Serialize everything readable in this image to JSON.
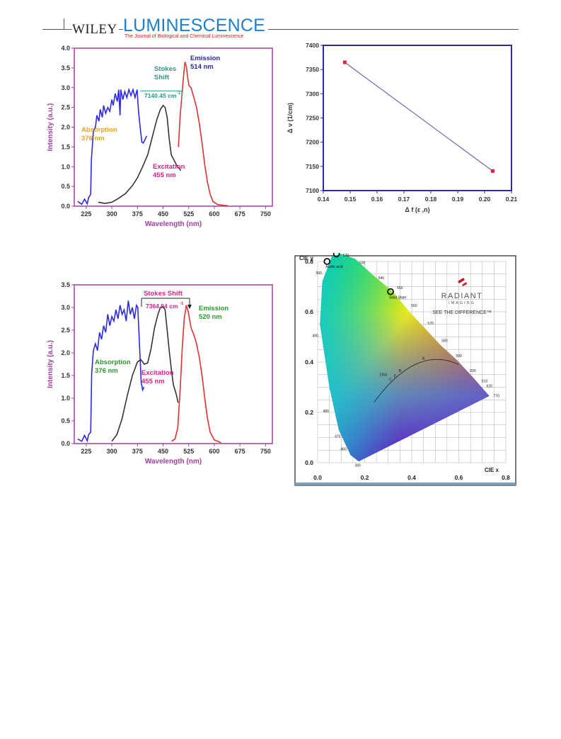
{
  "header": {
    "publisher": "WILEY",
    "journal": "LUMINESCENCE",
    "subtitle": "The Journal of Biological and Chemical Luminescence"
  },
  "chart_data": [
    {
      "id": "spectrum-top",
      "type": "line",
      "xlabel": "Wavelength (nm)",
      "ylabel": "Intensity (a.u.)",
      "xlim": [
        190,
        770
      ],
      "ylim": [
        0,
        4.0
      ],
      "xticks": [
        225,
        300,
        375,
        450,
        525,
        600,
        675,
        750
      ],
      "yticks": [
        "0.0",
        "0.5",
        "1.0",
        "1.5",
        "2.0",
        "2.5",
        "3.0",
        "3.5",
        "4.0"
      ],
      "annotations": {
        "absorption": "Absorption\n376 nm",
        "excitation": "Excitation\n455 nm",
        "emission": "Emission\n514 nm",
        "stokes": "Stokes\nShift",
        "stokes_value": "7140.45 cm",
        "stokes_sup": "-1"
      },
      "series": [
        {
          "color": "#2b2bd9",
          "points": [
            [
              200,
              0.12
            ],
            [
              212,
              0.05
            ],
            [
              220,
              0.18
            ],
            [
              228,
              0.06
            ],
            [
              232,
              0.22
            ],
            [
              238,
              0.3
            ],
            [
              240,
              1.15
            ],
            [
              246,
              1.9
            ],
            [
              252,
              2.0
            ],
            [
              256,
              2.3
            ],
            [
              262,
              2.15
            ],
            [
              266,
              2.45
            ],
            [
              272,
              2.25
            ],
            [
              276,
              2.55
            ],
            [
              282,
              2.35
            ],
            [
              288,
              2.5
            ],
            [
              294,
              2.4
            ],
            [
              300,
              2.7
            ],
            [
              304,
              2.55
            ],
            [
              310,
              2.85
            ],
            [
              316,
              2.65
            ],
            [
              320,
              2.95
            ],
            [
              324,
              2.3
            ],
            [
              326,
              2.95
            ],
            [
              332,
              2.7
            ],
            [
              338,
              2.9
            ],
            [
              344,
              2.75
            ],
            [
              350,
              2.95
            ],
            [
              356,
              2.8
            ],
            [
              362,
              2.95
            ],
            [
              368,
              2.75
            ],
            [
              374,
              2.95
            ],
            [
              378,
              2.4
            ],
            [
              384,
              1.9
            ],
            [
              388,
              1.62
            ],
            [
              392,
              1.6
            ],
            [
              398,
              1.7
            ],
            [
              402,
              1.78
            ]
          ]
        },
        {
          "color": "#333333",
          "points": [
            [
              260,
              0.1
            ],
            [
              280,
              0.07
            ],
            [
              300,
              0.1
            ],
            [
              320,
              0.2
            ],
            [
              340,
              0.32
            ],
            [
              360,
              0.52
            ],
            [
              375,
              0.72
            ],
            [
              390,
              1.0
            ],
            [
              405,
              1.3
            ],
            [
              420,
              1.8
            ],
            [
              432,
              2.2
            ],
            [
              442,
              2.45
            ],
            [
              450,
              2.55
            ],
            [
              456,
              2.5
            ],
            [
              462,
              2.25
            ],
            [
              468,
              1.7
            ],
            [
              474,
              1.3
            ],
            [
              480,
              1.2
            ],
            [
              486,
              1.1
            ],
            [
              492,
              1.0
            ],
            [
              498,
              0.95
            ],
            [
              502,
              0.9
            ]
          ]
        },
        {
          "color": "#e03030",
          "points": [
            [
              495,
              1.5
            ],
            [
              500,
              2.3
            ],
            [
              505,
              2.8
            ],
            [
              510,
              3.3
            ],
            [
              514,
              3.65
            ],
            [
              518,
              3.55
            ],
            [
              522,
              3.25
            ],
            [
              526,
              3.05
            ],
            [
              532,
              3.0
            ],
            [
              540,
              2.75
            ],
            [
              548,
              2.5
            ],
            [
              556,
              2.1
            ],
            [
              564,
              1.6
            ],
            [
              572,
              1.05
            ],
            [
              580,
              0.6
            ],
            [
              588,
              0.3
            ],
            [
              596,
              0.12
            ],
            [
              610,
              0.04
            ],
            [
              640,
              0.01
            ]
          ]
        }
      ]
    },
    {
      "id": "lippert-plot",
      "type": "line",
      "xlabel": "Δ f (ε ,n)",
      "ylabel": "Δ ν (1/cm)",
      "xlim": [
        0.14,
        0.21
      ],
      "ylim": [
        7100,
        7400
      ],
      "xticks": [
        "0.14",
        "0.15",
        "0.16",
        "0.17",
        "0.18",
        "0.19",
        "0.20",
        "0.21"
      ],
      "yticks": [
        "7100",
        "7150",
        "7200",
        "7250",
        "7300",
        "7350",
        "7400"
      ],
      "x": [
        0.148,
        0.203
      ],
      "y": [
        7364.94,
        7140.45
      ]
    },
    {
      "id": "spectrum-bottom",
      "type": "line",
      "xlabel": "Wavelength (nm)",
      "ylabel": "Intensity (a.u.)",
      "xlim": [
        190,
        770
      ],
      "ylim": [
        0,
        3.5
      ],
      "xticks": [
        225,
        300,
        375,
        450,
        525,
        600,
        675,
        750
      ],
      "yticks": [
        "0.0",
        "0.5",
        "1.0",
        "1.5",
        "2.0",
        "2.5",
        "3.0",
        "3.5"
      ],
      "annotations": {
        "absorption": "Absorption\n376 nm",
        "excitation": "Excitation\n455 nm",
        "emission": "Emission\n520 nm",
        "stokes": "Stokes Shift",
        "stokes_value": "7364.94 cm",
        "stokes_sup": "-1"
      },
      "series": [
        {
          "color": "#2b2bd9",
          "points": [
            [
              200,
              0.1
            ],
            [
              212,
              0.05
            ],
            [
              220,
              0.18
            ],
            [
              228,
              0.06
            ],
            [
              232,
              0.2
            ],
            [
              238,
              0.25
            ],
            [
              241,
              1.55
            ],
            [
              246,
              2.05
            ],
            [
              252,
              2.2
            ],
            [
              258,
              2.05
            ],
            [
              264,
              2.45
            ],
            [
              270,
              2.3
            ],
            [
              276,
              2.6
            ],
            [
              282,
              2.45
            ],
            [
              288,
              2.85
            ],
            [
              294,
              2.6
            ],
            [
              300,
              2.8
            ],
            [
              306,
              2.7
            ],
            [
              312,
              2.95
            ],
            [
              318,
              2.75
            ],
            [
              324,
              3.05
            ],
            [
              330,
              2.85
            ],
            [
              336,
              2.95
            ],
            [
              342,
              2.7
            ],
            [
              348,
              3.15
            ],
            [
              354,
              2.85
            ],
            [
              360,
              3.0
            ],
            [
              366,
              2.75
            ],
            [
              372,
              3.05
            ],
            [
              376,
              3.0
            ],
            [
              382,
              2.0
            ],
            [
              386,
              1.35
            ],
            [
              390,
              1.18
            ],
            [
              394,
              1.25
            ]
          ]
        },
        {
          "color": "#333333",
          "points": [
            [
              300,
              0.05
            ],
            [
              315,
              0.2
            ],
            [
              330,
              0.55
            ],
            [
              345,
              1.05
            ],
            [
              360,
              1.5
            ],
            [
              375,
              1.8
            ],
            [
              385,
              1.85
            ],
            [
              395,
              1.75
            ],
            [
              405,
              1.78
            ],
            [
              415,
              2.1
            ],
            [
              425,
              2.55
            ],
            [
              435,
              2.85
            ],
            [
              442,
              3.0
            ],
            [
              450,
              3.02
            ],
            [
              456,
              2.95
            ],
            [
              462,
              2.5
            ],
            [
              468,
              2.05
            ],
            [
              474,
              1.65
            ],
            [
              480,
              1.3
            ],
            [
              488,
              1.1
            ],
            [
              494,
              0.9
            ]
          ]
        },
        {
          "color": "#e03030",
          "points": [
            [
              475,
              0.05
            ],
            [
              485,
              0.1
            ],
            [
              493,
              0.35
            ],
            [
              500,
              1.2
            ],
            [
              506,
              2.1
            ],
            [
              512,
              2.75
            ],
            [
              518,
              3.05
            ],
            [
              524,
              2.9
            ],
            [
              532,
              2.55
            ],
            [
              540,
              2.4
            ],
            [
              548,
              2.2
            ],
            [
              556,
              1.9
            ],
            [
              564,
              1.5
            ],
            [
              572,
              1.0
            ],
            [
              580,
              0.55
            ],
            [
              588,
              0.25
            ],
            [
              600,
              0.08
            ],
            [
              620,
              0.02
            ]
          ]
        }
      ]
    },
    {
      "id": "cie-diagram",
      "type": "scatter",
      "xlabel": "CIE x",
      "ylabel": "CIE y",
      "xlim": [
        0.0,
        0.8
      ],
      "ylim": [
        0.0,
        0.8
      ],
      "xticks": [
        "0.0",
        "0.2",
        "0.4",
        "0.6",
        "0.8"
      ],
      "yticks": [
        "0.0",
        "0.2",
        "0.4",
        "0.6",
        "0.8"
      ],
      "locus_wavelengths": [
        "380",
        "460",
        "470",
        "480",
        "490",
        "500",
        "510",
        "520",
        "530",
        "540",
        "550",
        "560",
        "570",
        "580",
        "590",
        "600",
        "610",
        "620",
        "770"
      ],
      "white_point_labels": [
        "D65",
        "A",
        "B",
        "C",
        "E"
      ],
      "points": [
        {
          "label": "Chloroform",
          "x": 0.08,
          "y": 0.83
        },
        {
          "label": "Acetic acid",
          "x": 0.04,
          "y": 0.8
        },
        {
          "label": "Solid State",
          "x": 0.31,
          "y": 0.68
        }
      ],
      "logo": {
        "brand": "RADIANT",
        "sub": "IMAGING",
        "tagline": "SEE THE DIFFERENCE™"
      }
    }
  ]
}
